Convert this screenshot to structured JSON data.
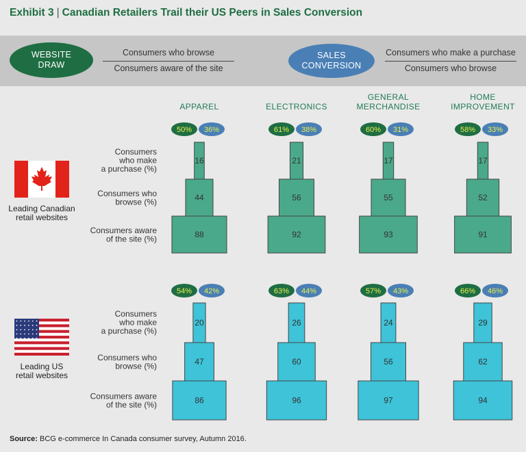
{
  "title": {
    "exhibit": "Exhibit 3",
    "separator": "|",
    "text": "Canadian Retailers Trail their US Peers in Sales Conversion"
  },
  "legend": {
    "website_draw": {
      "label_line1": "WEBSITE",
      "label_line2": "DRAW",
      "numerator": "Consumers who browse",
      "denominator": "Consumers aware of the site",
      "color": "#1f6e43"
    },
    "sales_conversion": {
      "label_line1": "SALES",
      "label_line2": "CONVERSION",
      "numerator": "Consumers who make a purchase",
      "denominator": "Consumers who browse",
      "color": "#4a7fb5"
    }
  },
  "source": {
    "label": "Source:",
    "text": "BCG e-commerce In Canada consumer survey, Autumn 2016."
  },
  "chart_data": {
    "type": "bar",
    "categories": [
      {
        "line1": "APPAREL",
        "line2": ""
      },
      {
        "line1": "ELECTRONICS",
        "line2": ""
      },
      {
        "line1": "GENERAL",
        "line2": "MERCHANDISE"
      },
      {
        "line1": "HOME",
        "line2": "IMPROVEMENT"
      }
    ],
    "row_labels": {
      "purchase": [
        "Consumers",
        "who make",
        "a purchase (%)"
      ],
      "browse": [
        "Consumers who",
        "browse (%)"
      ],
      "aware": [
        "Consumers aware",
        "of the site (%)"
      ]
    },
    "groups": [
      {
        "name_line1": "Leading Canadian",
        "name_line2": "retail websites",
        "flag": "canada-flag",
        "color": "#4aa98a",
        "aware": [
          88,
          92,
          93,
          91
        ],
        "browse": [
          44,
          56,
          55,
          52
        ],
        "purchase": [
          16,
          21,
          17,
          17
        ],
        "website_draw": [
          "50%",
          "61%",
          "60%",
          "58%"
        ],
        "sales_conversion": [
          "36%",
          "38%",
          "31%",
          "33%"
        ]
      },
      {
        "name_line1": "Leading US",
        "name_line2": "retail websites",
        "flag": "us-flag",
        "color": "#3ec3d8",
        "aware": [
          86,
          96,
          97,
          94
        ],
        "browse": [
          47,
          60,
          56,
          62
        ],
        "purchase": [
          20,
          26,
          24,
          29
        ],
        "website_draw": [
          "54%",
          "63%",
          "57%",
          "66%"
        ],
        "sales_conversion": [
          "42%",
          "44%",
          "43%",
          "46%"
        ]
      }
    ]
  }
}
